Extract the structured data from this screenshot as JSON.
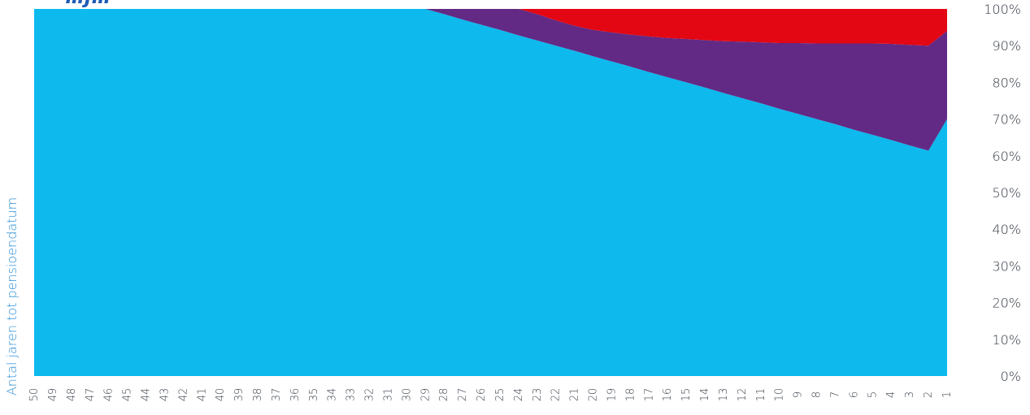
{
  "chart_data": {
    "type": "area",
    "title": "",
    "stacked": true,
    "xlabel": "Antal jaren tot pensioendatum",
    "ylabel": "",
    "ylim": [
      0,
      100
    ],
    "y_ticks": [
      "0%",
      "10%",
      "20%",
      "30%",
      "40%",
      "50%",
      "60%",
      "70%",
      "80%",
      "90%",
      "100%"
    ],
    "y_axis_side": "right",
    "x_axis_reversed": true,
    "x": [
      50,
      49,
      48,
      47,
      46,
      45,
      44,
      43,
      42,
      41,
      40,
      39,
      38,
      37,
      36,
      35,
      34,
      33,
      32,
      31,
      30,
      29,
      28,
      27,
      26,
      25,
      24,
      23,
      22,
      21,
      20,
      19,
      18,
      17,
      16,
      15,
      14,
      13,
      12,
      11,
      10,
      9,
      8,
      7,
      6,
      5,
      4,
      3,
      2,
      1
    ],
    "grid": false,
    "legend": "none",
    "series": [
      {
        "color": "#0db9ed",
        "values": [
          100,
          100,
          100,
          100,
          100,
          100,
          100,
          100,
          100,
          100,
          100,
          100,
          100,
          100,
          100,
          100,
          100,
          100,
          100,
          100,
          100,
          100,
          98.6,
          97.1,
          95.7,
          94.3,
          92.8,
          91.4,
          90.0,
          88.6,
          87.1,
          85.7,
          84.3,
          82.8,
          81.4,
          80.0,
          78.6,
          77.1,
          75.7,
          74.3,
          72.8,
          71.4,
          70.0,
          68.6,
          67.1,
          65.7,
          64.3,
          62.8,
          61.4,
          70.0
        ]
      },
      {
        "color": "#622a85",
        "values": [
          0,
          0,
          0,
          0,
          0,
          0,
          0,
          0,
          0,
          0,
          0,
          0,
          0,
          0,
          0,
          0,
          0,
          0,
          0,
          0,
          0,
          0,
          1.4,
          2.9,
          4.3,
          5.7,
          7.2,
          7.2,
          6.9,
          6.8,
          7.2,
          7.9,
          8.7,
          9.7,
          10.7,
          11.8,
          12.9,
          14.1,
          15.4,
          16.6,
          17.9,
          19.3,
          20.6,
          22.0,
          23.5,
          24.9,
          26.2,
          27.4,
          28.6,
          24.0
        ]
      },
      {
        "color": "#e30613",
        "values": [
          0,
          0,
          0,
          0,
          0,
          0,
          0,
          0,
          0,
          0,
          0,
          0,
          0,
          0,
          0,
          0,
          0,
          0,
          0,
          0,
          0,
          0,
          0,
          0,
          0,
          0,
          0,
          1.4,
          3.1,
          4.6,
          5.7,
          6.4,
          7.0,
          7.5,
          7.9,
          8.2,
          8.5,
          8.8,
          8.9,
          9.1,
          9.3,
          9.3,
          9.4,
          9.4,
          9.4,
          9.4,
          9.5,
          9.8,
          10.0,
          6.0
        ]
      }
    ],
    "title_fragment": {
      "text": "…j…",
      "color": "#1d5bb5"
    },
    "axis_title_color": "#2c8fd6"
  }
}
